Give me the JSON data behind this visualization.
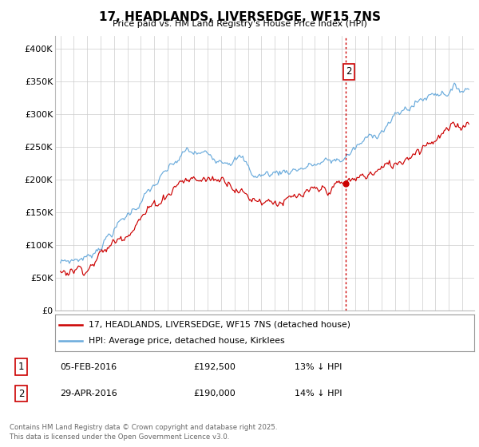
{
  "title": "17, HEADLANDS, LIVERSEDGE, WF15 7NS",
  "subtitle": "Price paid vs. HM Land Registry's House Price Index (HPI)",
  "ylabel_ticks": [
    "£0",
    "£50K",
    "£100K",
    "£150K",
    "£200K",
    "£250K",
    "£300K",
    "£350K",
    "£400K"
  ],
  "ytick_vals": [
    0,
    50000,
    100000,
    150000,
    200000,
    250000,
    300000,
    350000,
    400000
  ],
  "ylim": [
    0,
    420000
  ],
  "hpi_color": "#6aabdc",
  "price_color": "#cc0000",
  "vline_color": "#cc0000",
  "annotation2_text": "2",
  "legend_label1": "17, HEADLANDS, LIVERSEDGE, WF15 7NS (detached house)",
  "legend_label2": "HPI: Average price, detached house, Kirklees",
  "table_rows": [
    {
      "num": "1",
      "date": "05-FEB-2016",
      "price": "£192,500",
      "hpi": "13% ↓ HPI"
    },
    {
      "num": "2",
      "date": "29-APR-2016",
      "price": "£190,000",
      "hpi": "14% ↓ HPI"
    }
  ],
  "footer": "Contains HM Land Registry data © Crown copyright and database right 2025.\nThis data is licensed under the Open Government Licence v3.0.",
  "bg_color": "#ffffff",
  "plot_bg_color": "#ffffff",
  "grid_color": "#cccccc",
  "vline_x_year": 2016.28
}
